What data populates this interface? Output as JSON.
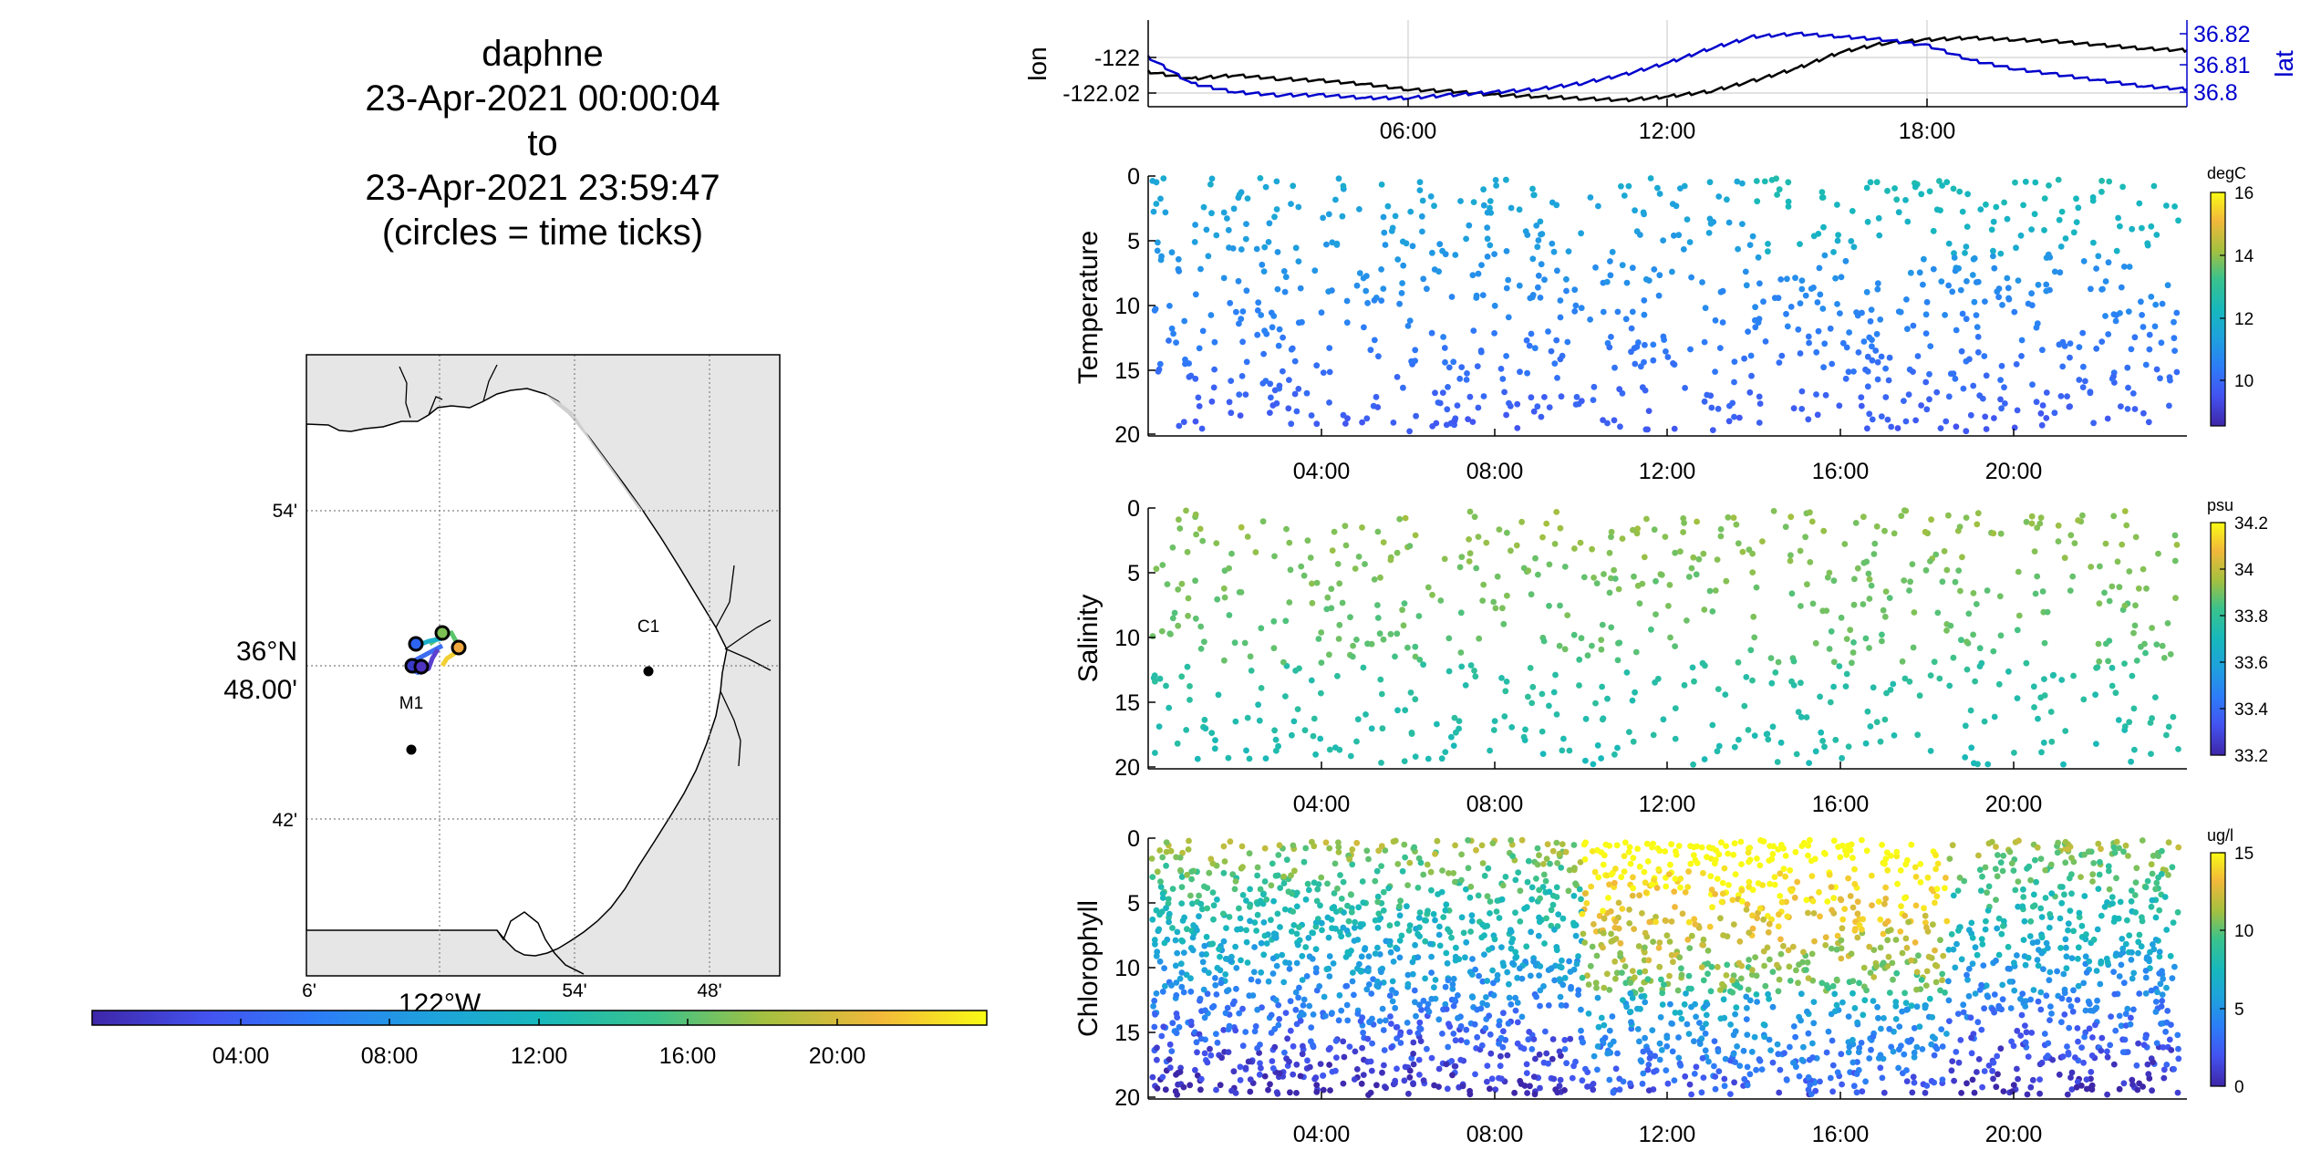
{
  "title": {
    "vehicle": "daphne",
    "start": "23-Apr-2021 00:00:04",
    "to": "to",
    "end": "23-Apr-2021 23:59:47",
    "note": "(circles = time ticks)"
  },
  "map": {
    "lat_tick_labels": [
      "54'",
      "48.00'",
      "42'"
    ],
    "lat_degree_label": "36°N",
    "lon_tick_labels": [
      "6'",
      "54'",
      "48'"
    ],
    "lon_degree_label": "122°W",
    "stations": [
      {
        "name": "C1"
      },
      {
        "name": "M1"
      }
    ],
    "colorbar_tick_labels": [
      "04:00",
      "08:00",
      "12:00",
      "16:00",
      "20:00"
    ],
    "colors": {
      "land": "#e6e6e6",
      "ocean": "#ffffff",
      "grid": "#808080"
    }
  },
  "chart_data": [
    {
      "type": "line",
      "title": "",
      "xlabel": "",
      "ylabel_left": "lon",
      "ylabel_right": "lat",
      "x_tick_labels": [
        "06:00",
        "12:00",
        "18:00"
      ],
      "yleft_tick_labels": [
        "-122",
        "-122.02"
      ],
      "yright_tick_labels": [
        "36.82",
        "36.81",
        "36.8"
      ],
      "grid": true,
      "series": [
        {
          "name": "lon",
          "color": "#000000",
          "x_hours": [
            0,
            1,
            2,
            3,
            4,
            5,
            6,
            7,
            8,
            9,
            10,
            11,
            12,
            13,
            14,
            15,
            16,
            17,
            18,
            19,
            20,
            21,
            22,
            23,
            24
          ],
          "values": [
            -122.008,
            -122.012,
            -122.01,
            -122.012,
            -122.013,
            -122.015,
            -122.018,
            -122.019,
            -122.021,
            -122.022,
            -122.023,
            -122.024,
            -122.022,
            -122.019,
            -122.013,
            -122.006,
            -121.997,
            -121.992,
            -121.99,
            -121.989,
            -121.99,
            -121.991,
            -121.993,
            -121.995,
            -121.996
          ]
        },
        {
          "name": "lat",
          "color": "#0000cc",
          "x_hours": [
            0,
            1,
            2,
            3,
            4,
            5,
            6,
            7,
            8,
            9,
            10,
            11,
            12,
            13,
            14,
            15,
            16,
            17,
            18,
            19,
            20,
            21,
            22,
            23,
            24
          ],
          "values": [
            36.812,
            36.803,
            36.8,
            36.799,
            36.799,
            36.798,
            36.798,
            36.799,
            36.8,
            36.801,
            36.803,
            36.806,
            36.81,
            36.815,
            36.819,
            36.82,
            36.819,
            36.818,
            36.816,
            36.811,
            36.808,
            36.806,
            36.804,
            36.802,
            36.801
          ]
        }
      ]
    },
    {
      "type": "scatter",
      "ylabel": "Temperature",
      "colorbar_label": "degC",
      "colorbar_tick_labels": [
        "16",
        "14",
        "12",
        "10"
      ],
      "x_tick_labels": [
        "04:00",
        "08:00",
        "12:00",
        "16:00",
        "20:00"
      ],
      "y_tick_labels": [
        "0",
        "5",
        "10",
        "15",
        "20"
      ],
      "ylim": [
        20,
        0
      ],
      "clim": [
        8.5,
        16
      ]
    },
    {
      "type": "scatter",
      "ylabel": "Salinity",
      "colorbar_label": "psu",
      "colorbar_tick_labels": [
        "34.2",
        "34",
        "33.8",
        "33.6",
        "33.4",
        "33.2"
      ],
      "x_tick_labels": [
        "04:00",
        "08:00",
        "12:00",
        "16:00",
        "20:00"
      ],
      "y_tick_labels": [
        "0",
        "5",
        "10",
        "15",
        "20"
      ],
      "ylim": [
        20,
        0
      ],
      "clim": [
        33.2,
        34.2
      ]
    },
    {
      "type": "scatter",
      "ylabel": "Chlorophyll",
      "colorbar_label": "ug/l",
      "colorbar_tick_labels": [
        "15",
        "10",
        "5",
        "0"
      ],
      "x_tick_labels": [
        "04:00",
        "08:00",
        "12:00",
        "16:00",
        "20:00"
      ],
      "y_tick_labels": [
        "0",
        "5",
        "10",
        "15",
        "20"
      ],
      "ylim": [
        20,
        0
      ],
      "clim": [
        0,
        15
      ]
    }
  ]
}
